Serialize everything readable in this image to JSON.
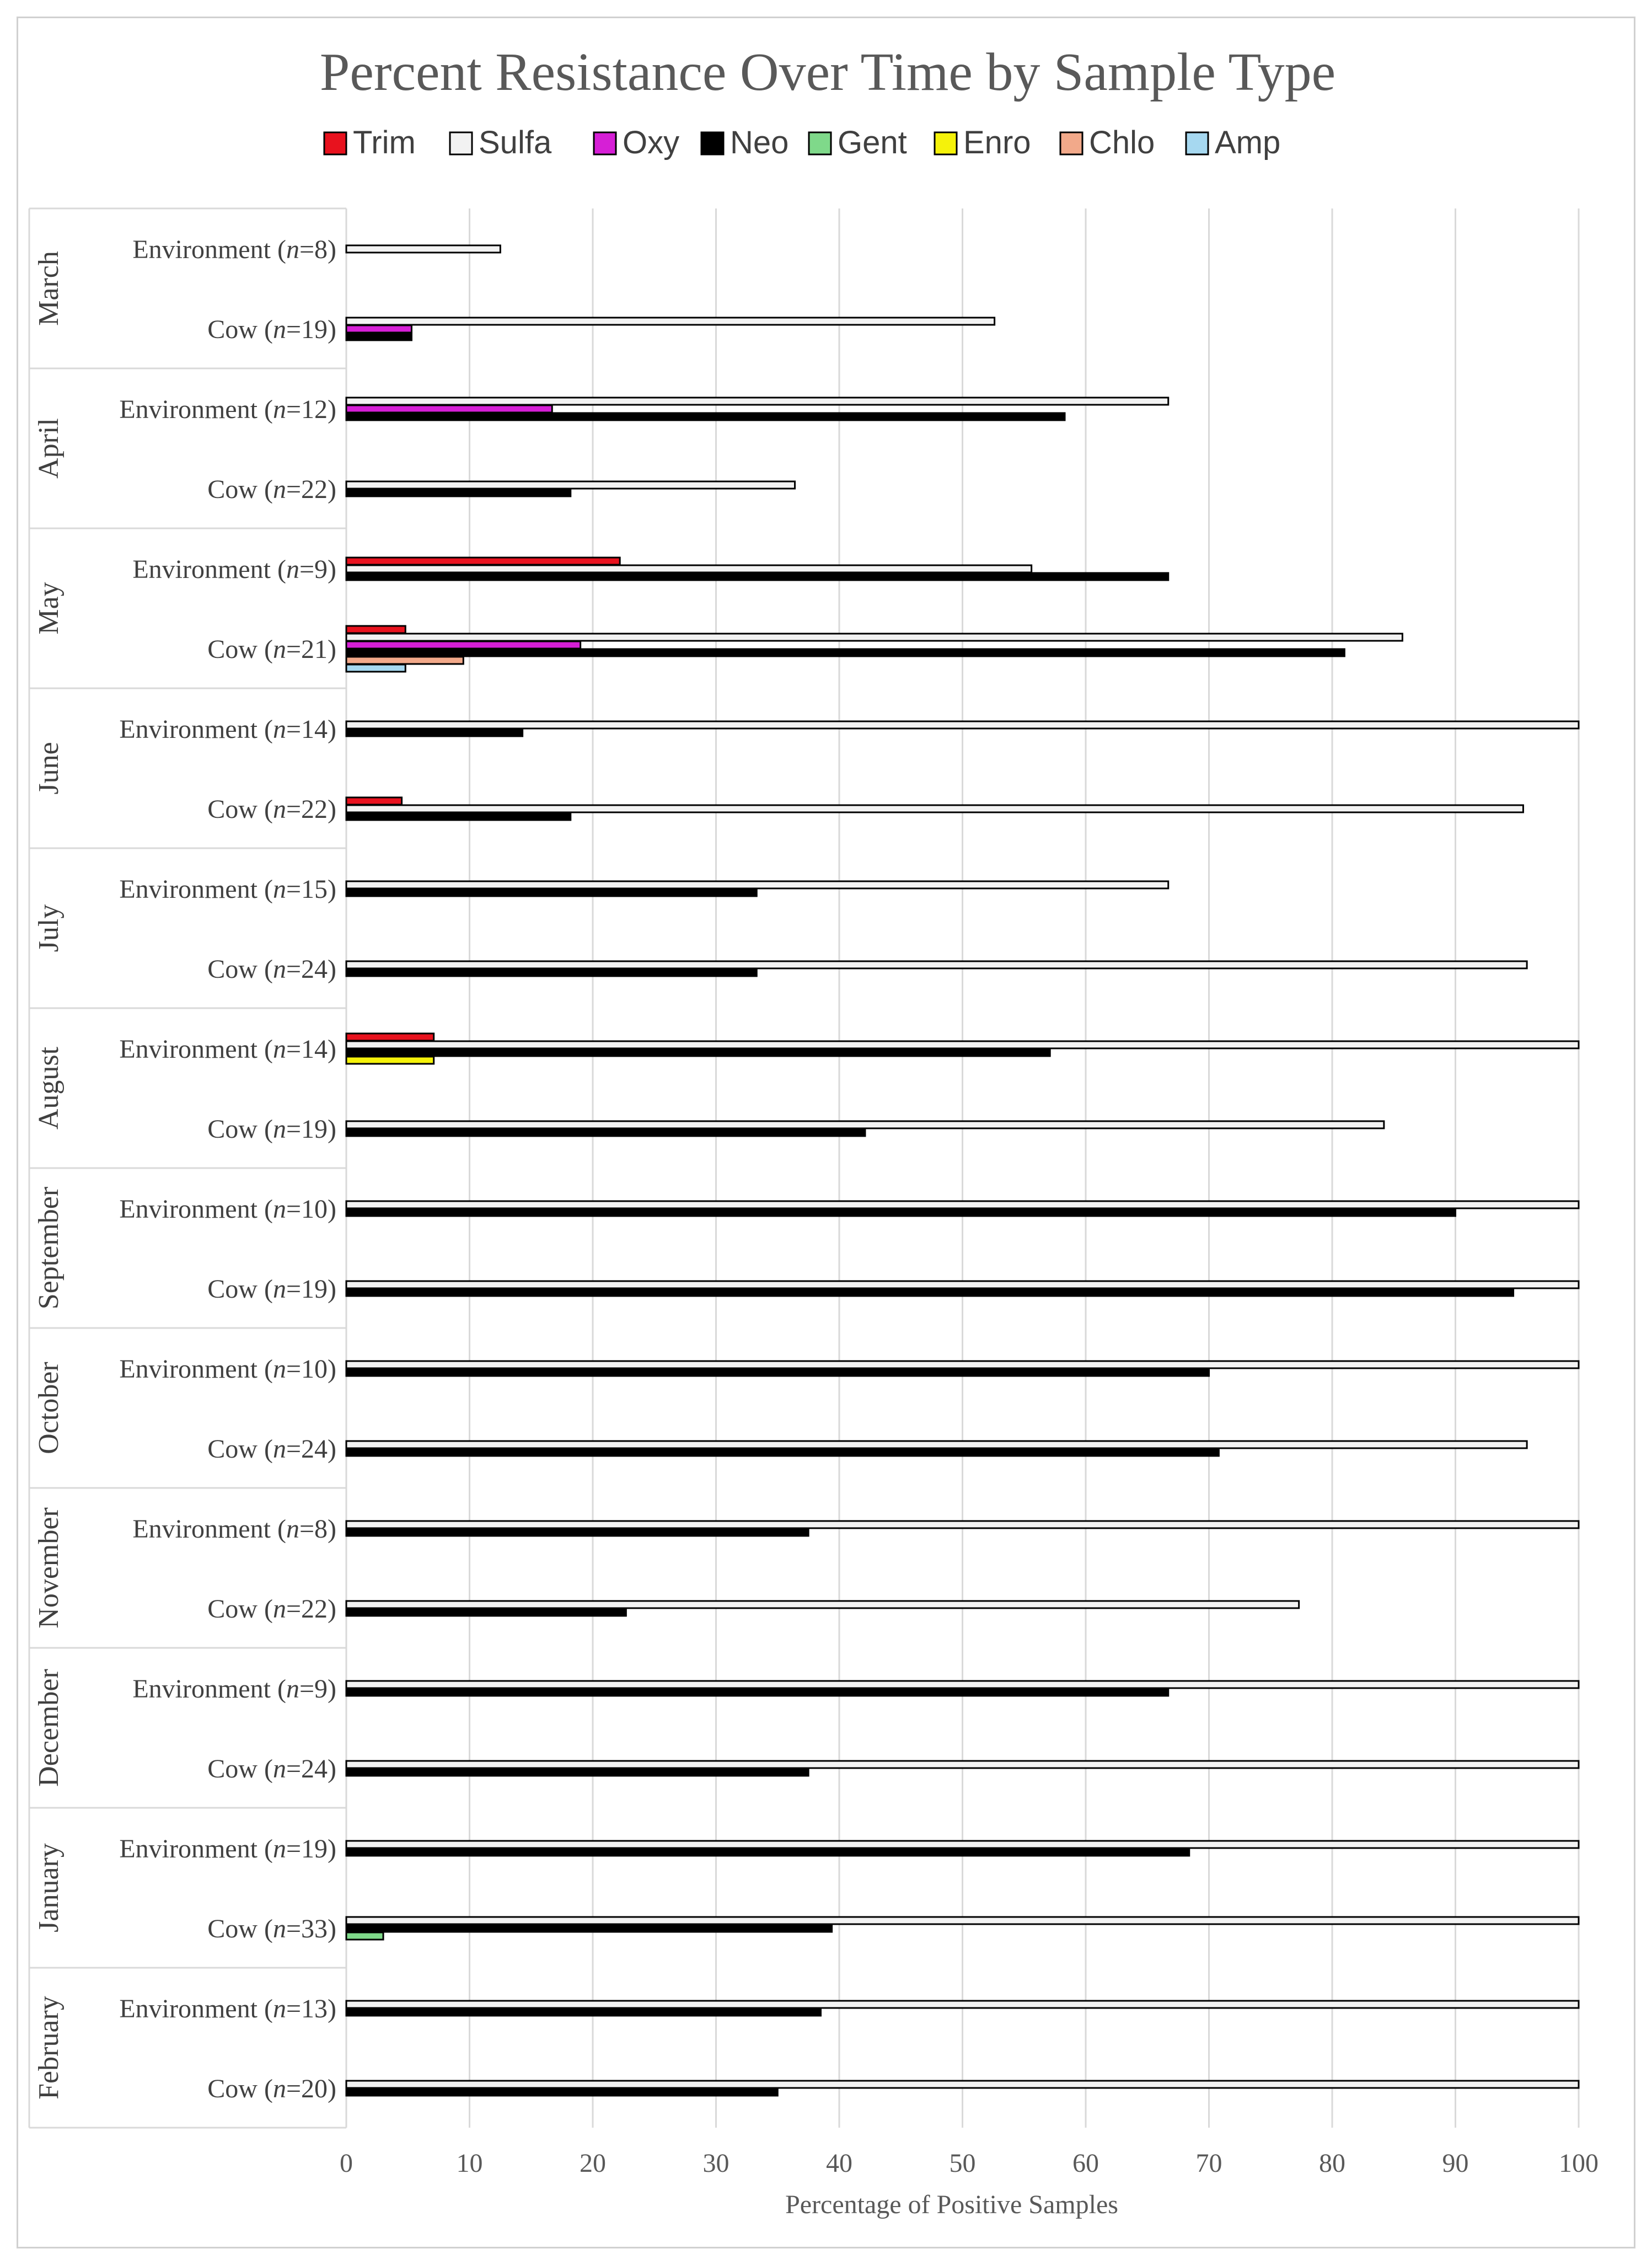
{
  "chart_data": {
    "type": "bar",
    "orientation": "horizontal",
    "title": "Percent Resistance Over Time by Sample Type",
    "xlabel": "Percentage of Positive Samples",
    "ylabel": "",
    "xlim": [
      0,
      100
    ],
    "xticks": [
      0,
      10,
      20,
      30,
      40,
      50,
      60,
      70,
      80,
      90,
      100
    ],
    "grid": true,
    "legend_position": "top",
    "series": [
      {
        "name": "Trim",
        "color": "#e8121e"
      },
      {
        "name": "Sulfa",
        "color": "#f2f2f2"
      },
      {
        "name": "Oxy",
        "color": "#d61fd6"
      },
      {
        "name": "Neo",
        "color": "#000000"
      },
      {
        "name": "Gent",
        "color": "#7fd98a"
      },
      {
        "name": "Enro",
        "color": "#f5f20a"
      },
      {
        "name": "Chlo",
        "color": "#f2a98a"
      },
      {
        "name": "Amp",
        "color": "#a6d8f0"
      }
    ],
    "groups": [
      {
        "month": "March",
        "rows": [
          {
            "sample": "Environment",
            "n": "8",
            "values": {
              "Sulfa": 12.5
            }
          },
          {
            "sample": "Cow",
            "n": "19",
            "values": {
              "Sulfa": 52.6,
              "Oxy": 5.3,
              "Neo": 5.3
            }
          }
        ]
      },
      {
        "month": "April",
        "rows": [
          {
            "sample": "Environment",
            "n": "12",
            "values": {
              "Sulfa": 66.7,
              "Oxy": 16.7,
              "Neo": 58.3
            }
          },
          {
            "sample": "Cow",
            "n": "22",
            "values": {
              "Sulfa": 36.4,
              "Neo": 18.2
            }
          }
        ]
      },
      {
        "month": "May",
        "rows": [
          {
            "sample": "Environment",
            "n": "9",
            "values": {
              "Trim": 22.2,
              "Sulfa": 55.6,
              "Neo": 66.7
            }
          },
          {
            "sample": "Cow",
            "n": "21",
            "values": {
              "Trim": 4.8,
              "Sulfa": 85.7,
              "Oxy": 19.0,
              "Neo": 81.0,
              "Chlo": 9.5,
              "Amp": 4.8
            }
          }
        ]
      },
      {
        "month": "June",
        "rows": [
          {
            "sample": "Environment",
            "n": "14",
            "values": {
              "Sulfa": 100,
              "Neo": 14.3
            }
          },
          {
            "sample": "Cow",
            "n": "22",
            "values": {
              "Trim": 4.5,
              "Sulfa": 95.5,
              "Neo": 18.2
            }
          }
        ]
      },
      {
        "month": "July",
        "rows": [
          {
            "sample": "Environment",
            "n": "15",
            "values": {
              "Sulfa": 66.7,
              "Neo": 33.3
            }
          },
          {
            "sample": "Cow",
            "n": "24",
            "values": {
              "Sulfa": 95.8,
              "Neo": 33.3
            }
          }
        ]
      },
      {
        "month": "August",
        "rows": [
          {
            "sample": "Environment",
            "n": "14",
            "values": {
              "Trim": 7.1,
              "Sulfa": 100,
              "Neo": 57.1,
              "Enro": 7.1
            }
          },
          {
            "sample": "Cow",
            "n": "19",
            "values": {
              "Sulfa": 84.2,
              "Neo": 42.1
            }
          }
        ]
      },
      {
        "month": "September",
        "rows": [
          {
            "sample": "Environment",
            "n": "10",
            "values": {
              "Sulfa": 100,
              "Neo": 90.0
            }
          },
          {
            "sample": "Cow",
            "n": "19",
            "values": {
              "Sulfa": 100,
              "Neo": 94.7
            }
          }
        ]
      },
      {
        "month": "October",
        "rows": [
          {
            "sample": "Environment",
            "n": "10",
            "values": {
              "Sulfa": 100,
              "Neo": 70.0
            }
          },
          {
            "sample": "Cow",
            "n": "24",
            "values": {
              "Sulfa": 95.8,
              "Neo": 70.8
            }
          }
        ]
      },
      {
        "month": "November",
        "rows": [
          {
            "sample": "Environment",
            "n": "8",
            "values": {
              "Sulfa": 100,
              "Neo": 37.5
            }
          },
          {
            "sample": "Cow",
            "n": "22",
            "values": {
              "Sulfa": 77.3,
              "Neo": 22.7
            }
          }
        ]
      },
      {
        "month": "December",
        "rows": [
          {
            "sample": "Environment",
            "n": "9",
            "values": {
              "Sulfa": 100,
              "Neo": 66.7
            }
          },
          {
            "sample": "Cow",
            "n": "24",
            "values": {
              "Sulfa": 100,
              "Neo": 37.5
            }
          }
        ]
      },
      {
        "month": "January",
        "rows": [
          {
            "sample": "Environment",
            "n": "19",
            "values": {
              "Sulfa": 100,
              "Neo": 68.4
            }
          },
          {
            "sample": "Cow",
            "n": "33",
            "values": {
              "Sulfa": 100,
              "Neo": 39.4,
              "Gent": 3.0
            }
          }
        ]
      },
      {
        "month": "February",
        "rows": [
          {
            "sample": "Environment",
            "n": "13",
            "values": {
              "Sulfa": 100,
              "Neo": 38.5
            }
          },
          {
            "sample": "Cow",
            "n": "20",
            "values": {
              "Sulfa": 100,
              "Neo": 35.0
            }
          }
        ]
      }
    ]
  }
}
